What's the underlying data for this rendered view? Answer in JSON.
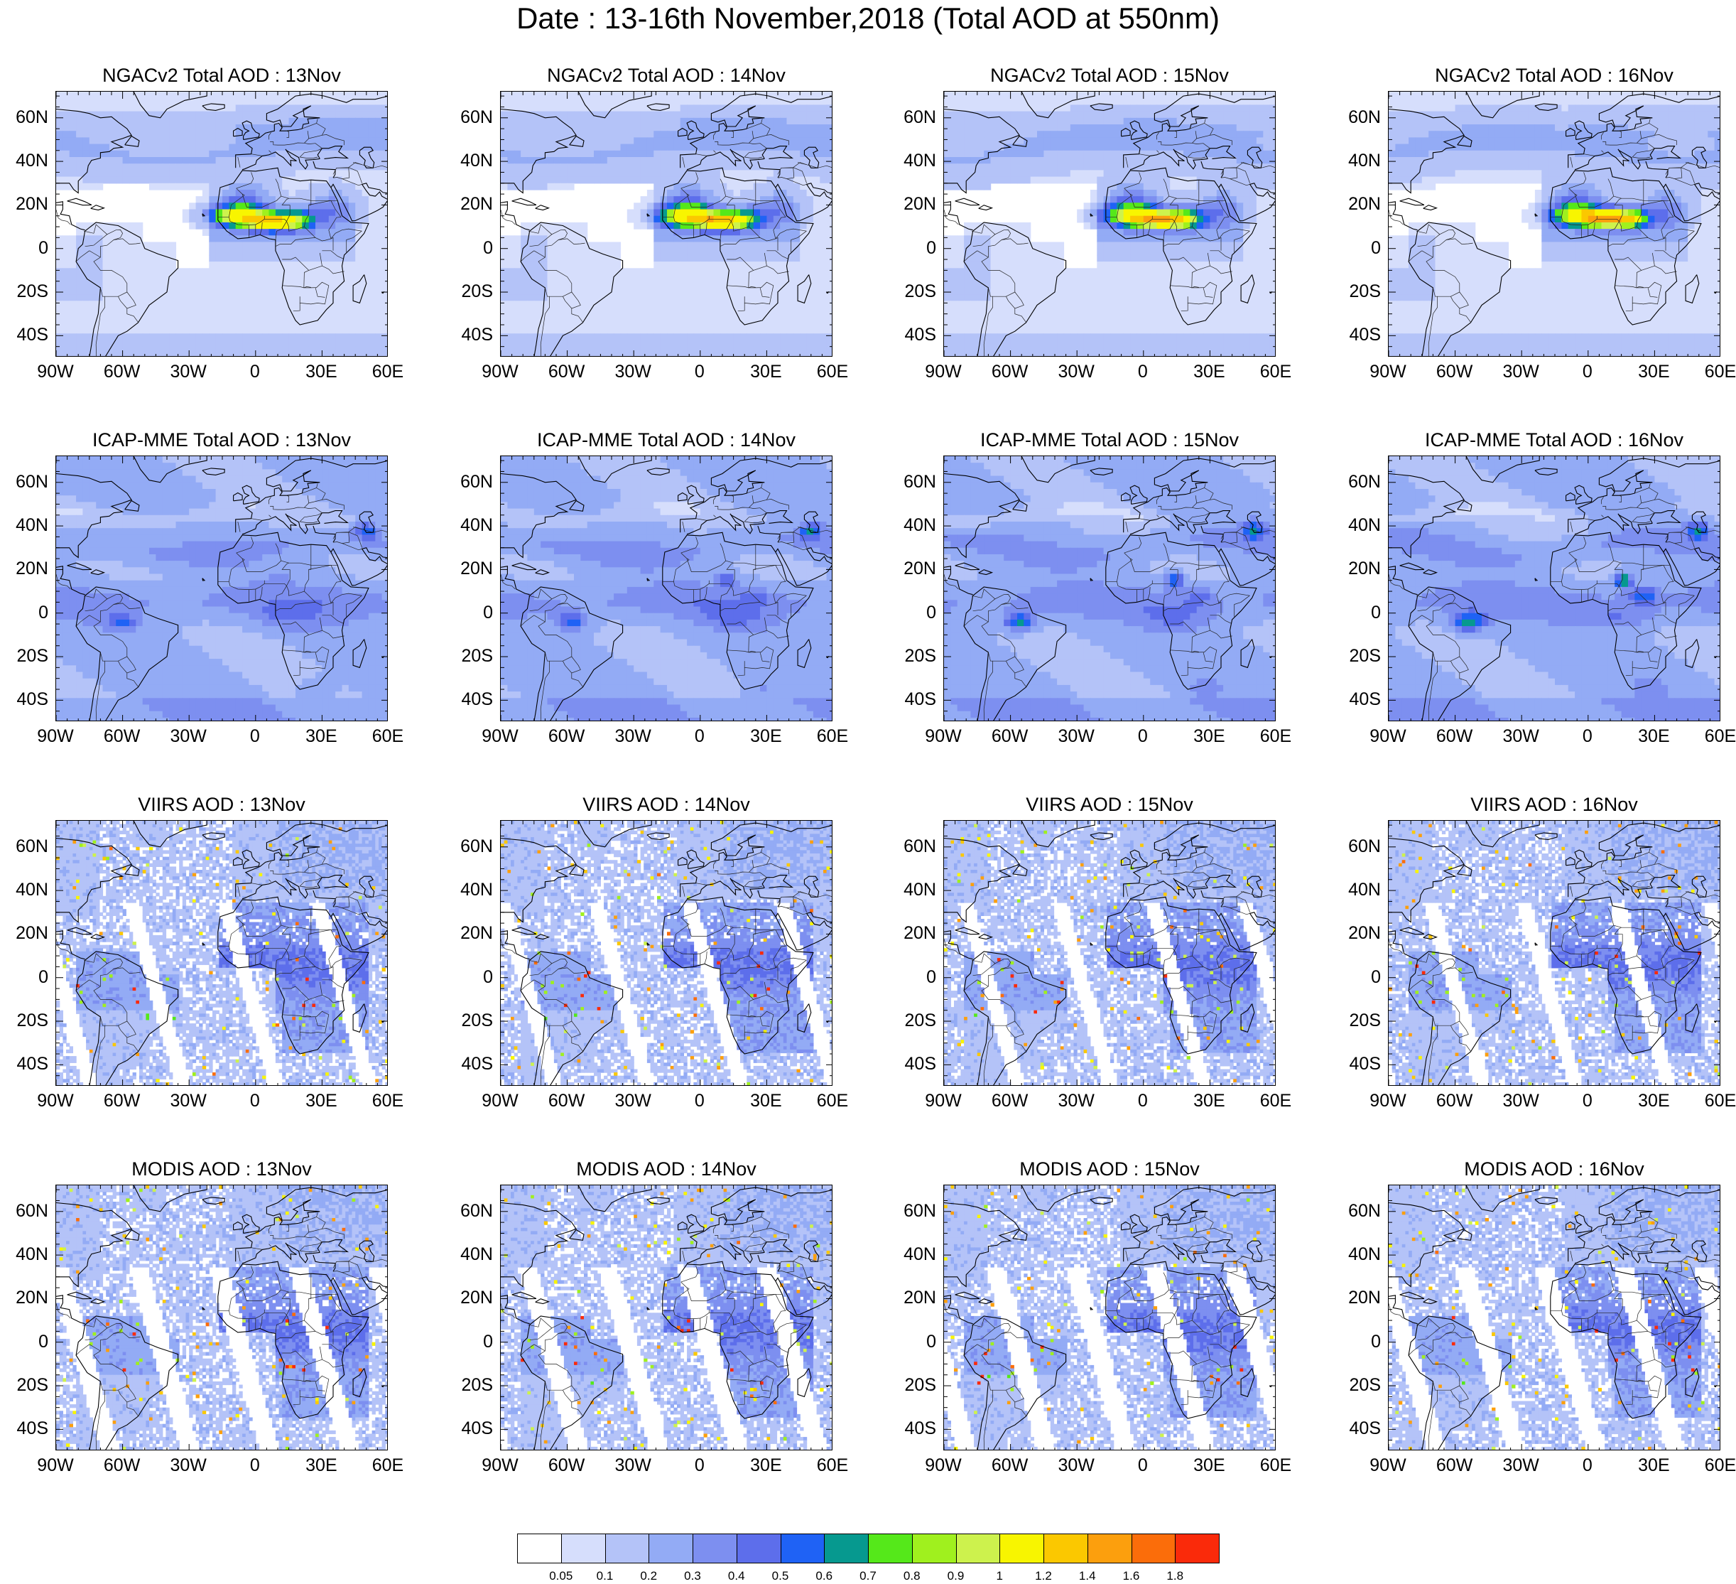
{
  "title": "Date : 13-16th November,2018 (Total AOD at 550nm)",
  "lat_labels": [
    "60N",
    "40N",
    "20N",
    "0",
    "20S",
    "40S"
  ],
  "lon_labels": [
    "90W",
    "60W",
    "30W",
    "0",
    "30E",
    "60E"
  ],
  "panels": [
    {
      "title": "NGACv2 Total AOD : 13Nov"
    },
    {
      "title": "NGACv2 Total AOD : 14Nov"
    },
    {
      "title": "NGACv2 Total AOD : 15Nov"
    },
    {
      "title": "NGACv2 Total AOD : 16Nov"
    },
    {
      "title": "ICAP-MME Total AOD : 13Nov"
    },
    {
      "title": "ICAP-MME Total AOD : 14Nov"
    },
    {
      "title": "ICAP-MME Total AOD : 15Nov"
    },
    {
      "title": "ICAP-MME Total AOD : 16Nov"
    },
    {
      "title": "VIIRS AOD : 13Nov"
    },
    {
      "title": "VIIRS AOD : 14Nov"
    },
    {
      "title": "VIIRS AOD : 15Nov"
    },
    {
      "title": "VIIRS AOD : 16Nov"
    },
    {
      "title": "MODIS AOD : 13Nov"
    },
    {
      "title": "MODIS AOD : 14Nov"
    },
    {
      "title": "MODIS AOD : 15Nov"
    },
    {
      "title": "MODIS AOD : 16Nov"
    }
  ],
  "colorbar": {
    "colors": [
      "#ffffff",
      "#d6defc",
      "#b4c3f8",
      "#93abf5",
      "#7d8ff0",
      "#5d6eeb",
      "#1f62f5",
      "#06998f",
      "#55e81a",
      "#a0f01e",
      "#cdf24d",
      "#f8f500",
      "#fbc800",
      "#fc9f0d",
      "#fb6d0a",
      "#fa2a0a"
    ],
    "labels": [
      "0.05",
      "0.1",
      "0.2",
      "0.3",
      "0.4",
      "0.5",
      "0.6",
      "0.7",
      "0.8",
      "0.9",
      "1",
      "1.2",
      "1.4",
      "1.6",
      "1.8"
    ]
  }
}
